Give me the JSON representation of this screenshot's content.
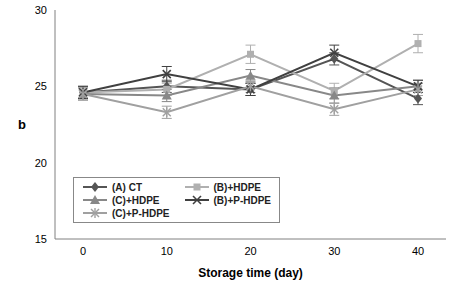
{
  "chart_data": {
    "type": "line",
    "x_label": "Storage time (day)",
    "y_label": "b",
    "categories": [
      "0",
      "10",
      "20",
      "30",
      "40"
    ],
    "ylim": [
      15,
      30
    ],
    "yticks": [
      15,
      20,
      25,
      30
    ],
    "grid": false,
    "legend": "lower left",
    "series": [
      {
        "name": "(A) CT",
        "color": "#555555",
        "marker": "diamond",
        "values": [
          24.6,
          25.0,
          24.8,
          26.8,
          24.2
        ],
        "errors": [
          0.4,
          0.4,
          0.4,
          0.4,
          0.4
        ]
      },
      {
        "name": "(B)+HDPE",
        "color": "#b0b0b0",
        "marker": "square",
        "values": [
          24.6,
          24.8,
          27.1,
          24.7,
          27.8
        ],
        "errors": [
          0.4,
          0.4,
          0.6,
          0.5,
          0.6
        ]
      },
      {
        "name": "(C)+HDPE",
        "color": "#888888",
        "marker": "triangle",
        "values": [
          24.5,
          24.4,
          25.7,
          24.4,
          25.0
        ],
        "errors": [
          0.4,
          0.4,
          0.4,
          0.5,
          0.4
        ]
      },
      {
        "name": "(B)+P-HDPE",
        "color": "#404040",
        "marker": "x",
        "values": [
          24.6,
          25.8,
          24.8,
          27.2,
          25.0
        ],
        "errors": [
          0.4,
          0.5,
          0.4,
          0.5,
          0.4
        ]
      },
      {
        "name": "(C)+P-HDPE",
        "color": "#a0a0a0",
        "marker": "star",
        "values": [
          24.5,
          23.3,
          25.0,
          23.5,
          24.8
        ],
        "errors": [
          0.4,
          0.4,
          0.4,
          0.4,
          0.4
        ]
      }
    ]
  }
}
